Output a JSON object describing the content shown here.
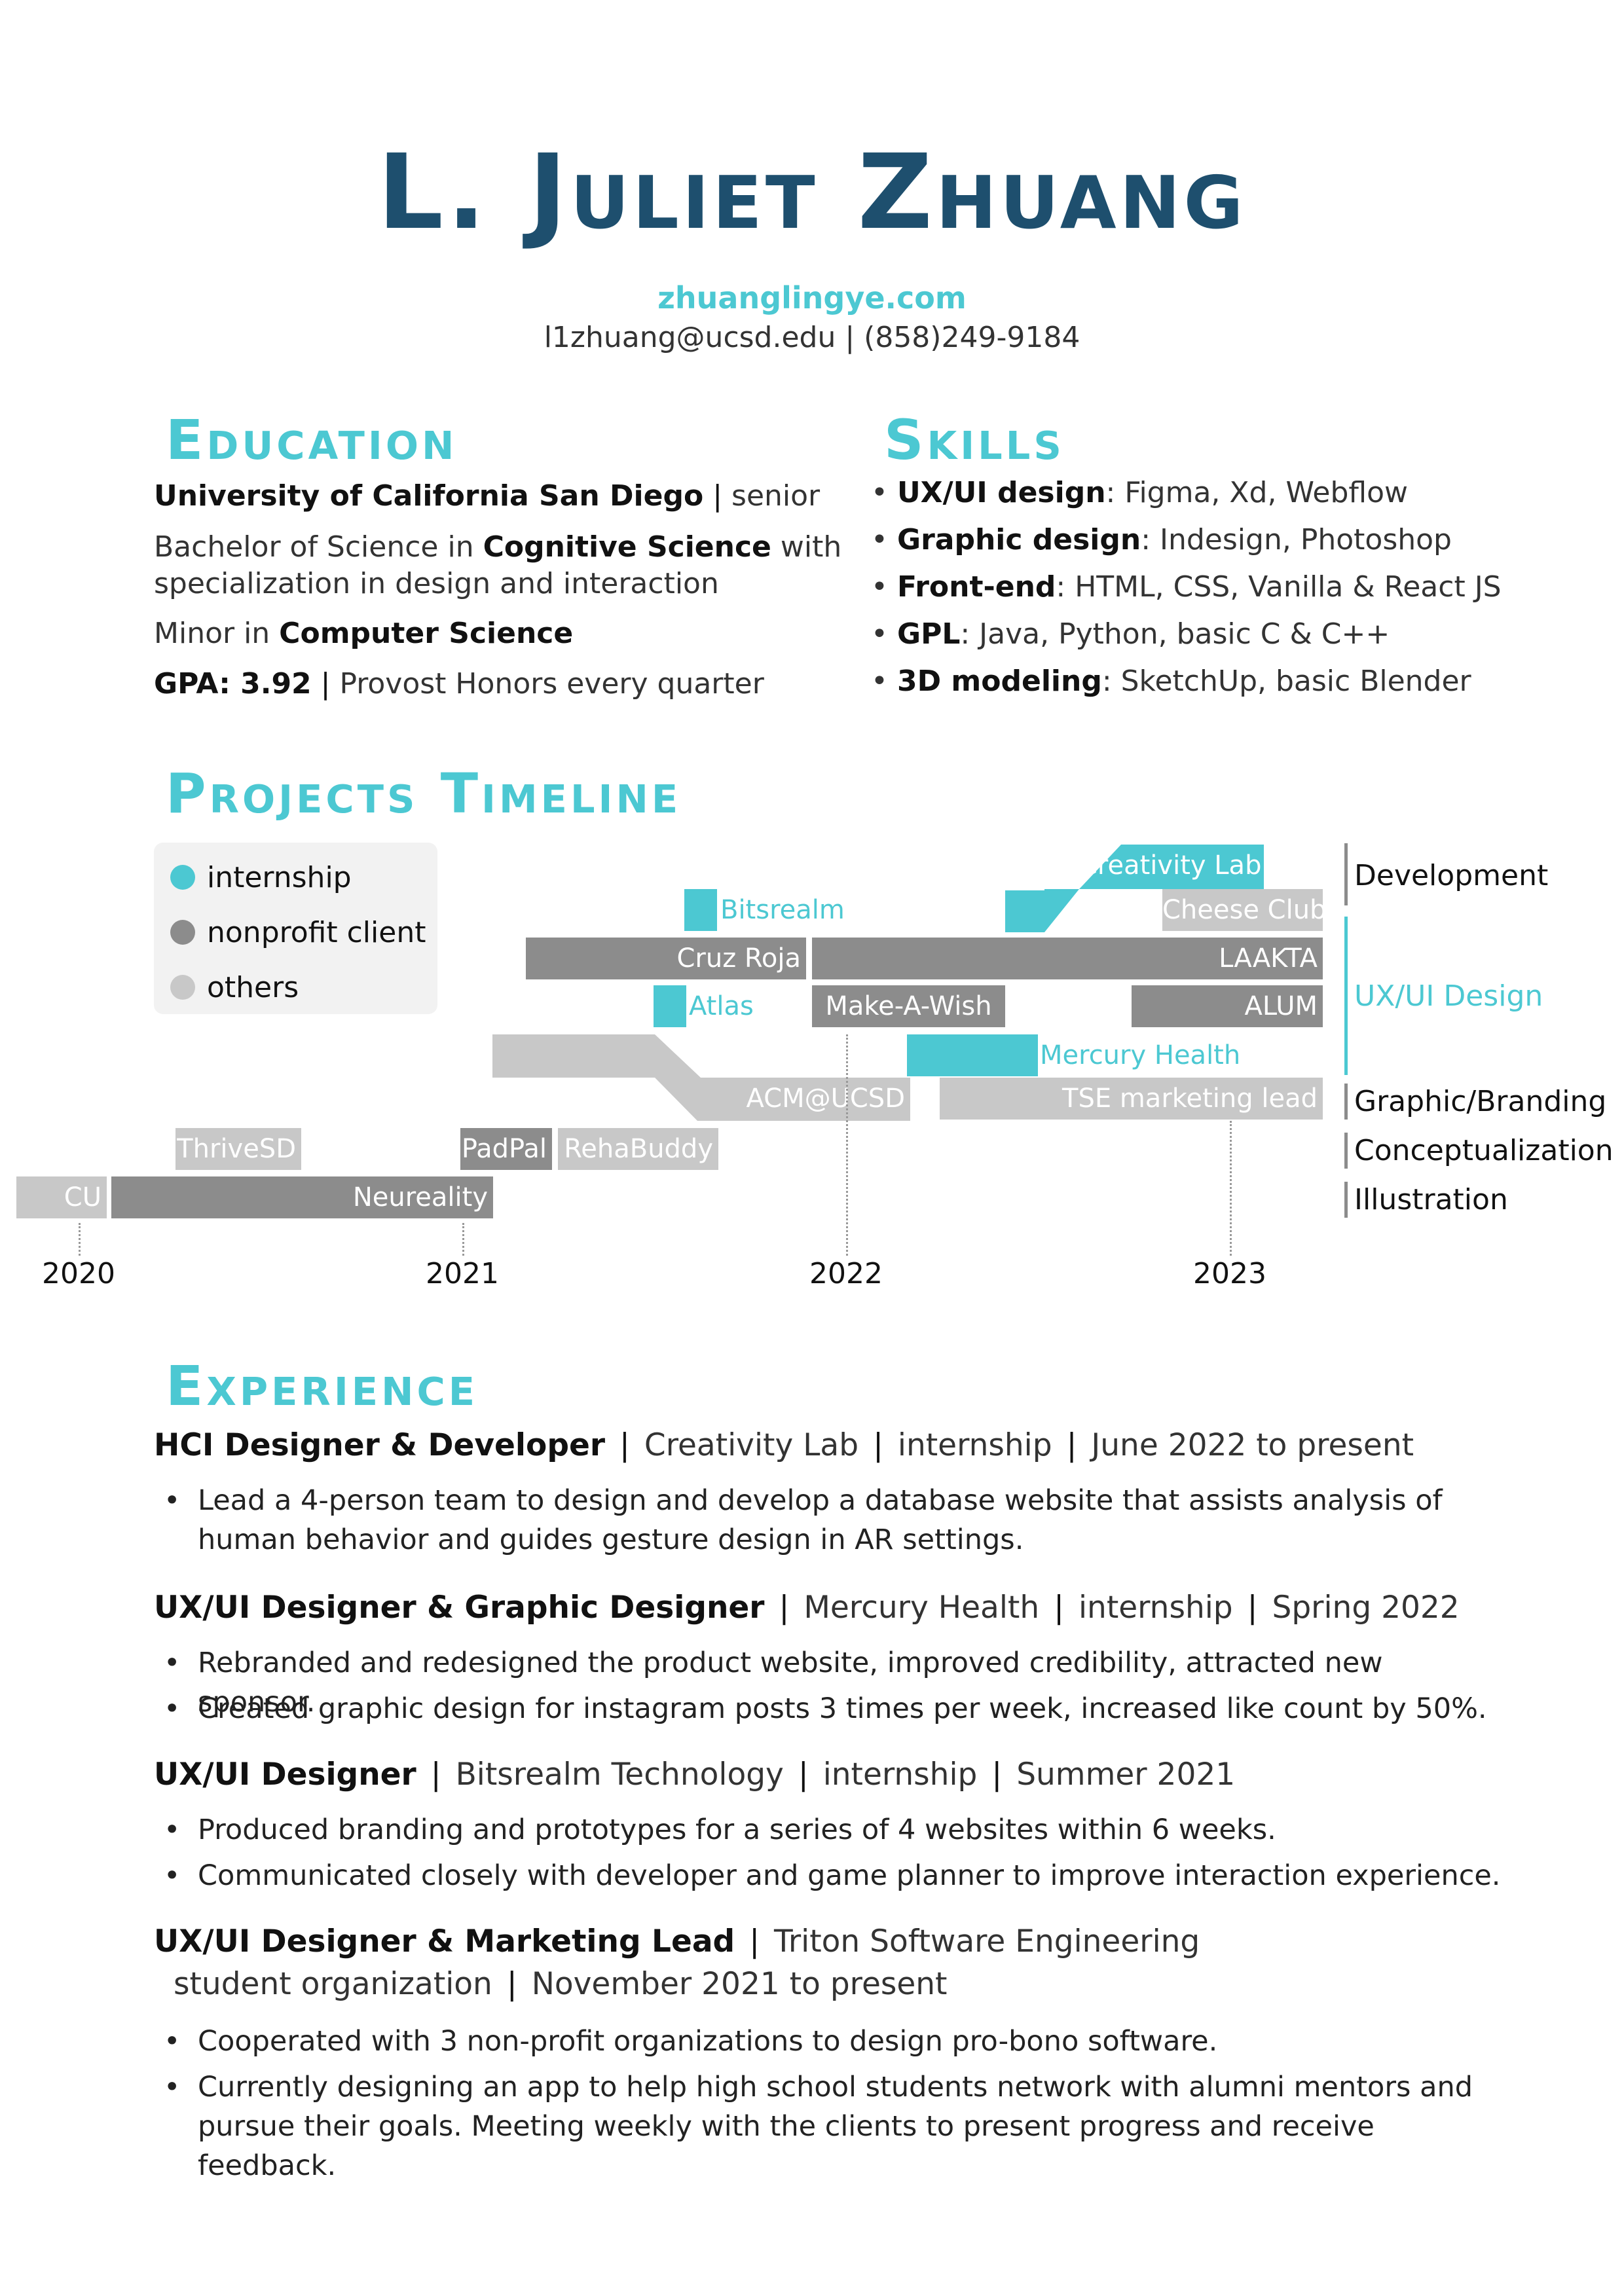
{
  "header": {
    "name": "L. Juliet Zhuang",
    "website": "zhuanglingye.com",
    "contact": "l1zhuang@ucsd.edu | (858)249-9184"
  },
  "education": {
    "title": "Education",
    "school": "University of California San Diego",
    "standing": "senior",
    "degree_pre": "Bachelor of Science in ",
    "degree_major": "Cognitive Science",
    "degree_post": " with",
    "degree_line2": "specialization in design and interaction",
    "minor_pre": "Minor in ",
    "minor": "Computer Science",
    "gpa": "GPA: 3.92",
    "honors": "Provost Honors every quarter"
  },
  "skills": {
    "title": "Skills",
    "items": [
      {
        "name": "UX/UI design",
        "value": ": Figma, Xd, Webflow"
      },
      {
        "name": "Graphic design",
        "value": ": Indesign, Photoshop"
      },
      {
        "name": "Front-end",
        "value": ": HTML, CSS, Vanilla & React JS"
      },
      {
        "name": "GPL",
        "value": ": Java, Python, basic C & C++"
      },
      {
        "name": "3D modeling",
        "value": ": SketchUp, basic Blender"
      }
    ]
  },
  "timeline": {
    "title": "Projects Timeline",
    "legend": [
      "internship",
      "nonprofit client",
      "others"
    ],
    "legend_colors": [
      "#4cc8d2",
      "#8c8c8c",
      "#c8c8c8"
    ],
    "projects": {
      "creativity_lab": "Creativity Lab",
      "bitsrealm": "Bitsrealm",
      "cheese_club": "Cheese Club",
      "cruz_roja": "Cruz Roja",
      "laakta": "LAAKTA",
      "atlas": "Atlas",
      "make_a_wish": "Make-A-Wish",
      "alum": "ALUM",
      "mercury_health": "Mercury Health",
      "acm": "ACM@UCSD",
      "tse": "TSE marketing lead",
      "thrivesd": "ThriveSD",
      "padpal": "PadPal",
      "rehabuddy": "RehaBuddy",
      "cu": "CU",
      "neureality": "Neureality"
    },
    "years": [
      "2020",
      "2021",
      "2022",
      "2023"
    ],
    "categories": [
      "Development",
      "UX/UI Design",
      "Graphic/Branding",
      "Conceptualization",
      "Illustration"
    ]
  },
  "experience": {
    "title": "Experience",
    "jobs": [
      {
        "role": "HCI Designer & Developer",
        "org": "Creativity Lab",
        "type": "internship",
        "date": "June 2022 to present",
        "bullets": [
          "Lead a 4-person team to design and develop a database website that assists analysis of human behavior and guides gesture design in AR settings."
        ]
      },
      {
        "role": "UX/UI Designer & Graphic Designer",
        "org": "Mercury Health",
        "type": "internship",
        "date": "Spring 2022",
        "bullets": [
          "Rebranded and redesigned the product website, improved credibility, attracted new sponsor.",
          "Created graphic design for instagram posts 3 times per week, increased like count by 50%."
        ]
      },
      {
        "role": "UX/UI Designer",
        "org": "Bitsrealm Technology",
        "type": "internship",
        "date": "Summer 2021",
        "bullets": [
          "Produced branding and prototypes for a series of 4 websites within 6 weeks.",
          "Communicated closely with developer and game planner to improve interaction experience."
        ]
      },
      {
        "role": "UX/UI Designer & Marketing Lead",
        "org": "Triton Software Engineering",
        "type": "student organization",
        "date": "November 2021 to present",
        "bullets": [
          "Cooperated with 3 non-profit organizations to design pro-bono software.",
          "Currently designing an app to help high school students network with alumni mentors and pursue their goals. Meeting weekly with the clients to present progress and receive feedback."
        ]
      }
    ]
  },
  "colors": {
    "navy": "#1e4f6e",
    "teal": "#4cc8d2",
    "dark_gray": "#8c8c8c",
    "light_gray": "#c8c8c8"
  }
}
